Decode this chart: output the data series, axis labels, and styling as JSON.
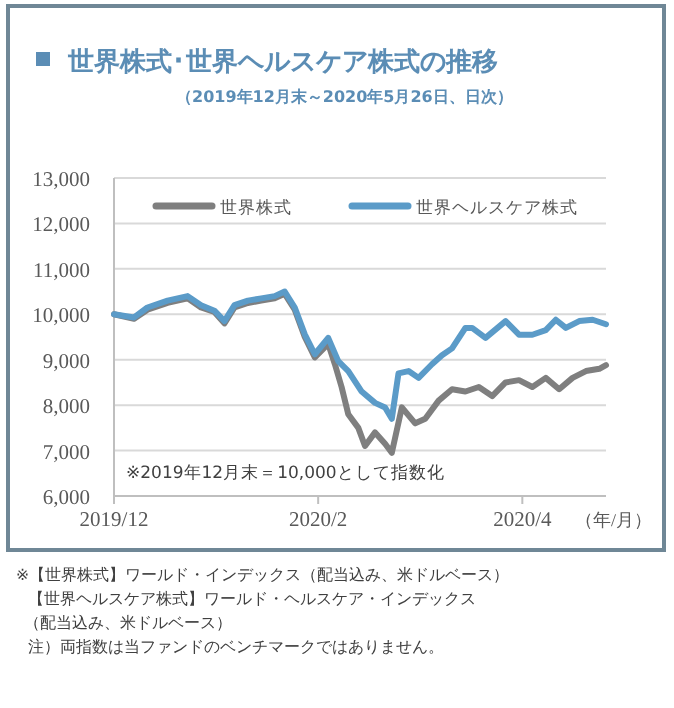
{
  "chart_data": {
    "type": "line",
    "title": "世界株式･世界ヘルスケア株式の推移",
    "subtitle": "（2019年12月末～2020年5月26日、日次）",
    "xlabel": "（年/月）",
    "xlim": [
      "2019-12-31",
      "2020-05-26"
    ],
    "xticks": [
      {
        "value": "2019-12-31",
        "label": "2019/12"
      },
      {
        "value": "2020-03-01",
        "label": "2020/2"
      },
      {
        "value": "2020-05-01",
        "label": "2020/4"
      }
    ],
    "ylim": [
      6000,
      13000
    ],
    "yticks": [
      {
        "value": 6000,
        "label": "6,000"
      },
      {
        "value": 7000,
        "label": "7,000"
      },
      {
        "value": 8000,
        "label": "8,000"
      },
      {
        "value": 9000,
        "label": "9,000"
      },
      {
        "value": 10000,
        "label": "10,000"
      },
      {
        "value": 11000,
        "label": "11,000"
      },
      {
        "value": 12000,
        "label": "12,000"
      },
      {
        "value": 13000,
        "label": "13,000"
      }
    ],
    "grid": "y",
    "legend": "top",
    "line_style": "solid",
    "marker": "none",
    "series": [
      {
        "name": "世界株式",
        "color": "#7f7f7f",
        "x": [
          "2019-12-31",
          "2020-01-06",
          "2020-01-10",
          "2020-01-16",
          "2020-01-22",
          "2020-01-26",
          "2020-01-30",
          "2020-02-02",
          "2020-02-05",
          "2020-02-09",
          "2020-02-13",
          "2020-02-17",
          "2020-02-20",
          "2020-02-23",
          "2020-02-26",
          "2020-02-29",
          "2020-03-04",
          "2020-03-06",
          "2020-03-08",
          "2020-03-10",
          "2020-03-13",
          "2020-03-15",
          "2020-03-18",
          "2020-03-21",
          "2020-03-23",
          "2020-03-26",
          "2020-03-30",
          "2020-04-02",
          "2020-04-06",
          "2020-04-10",
          "2020-04-14",
          "2020-04-18",
          "2020-04-22",
          "2020-04-26",
          "2020-04-30",
          "2020-05-04",
          "2020-05-08",
          "2020-05-12",
          "2020-05-16",
          "2020-05-20",
          "2020-05-24",
          "2020-05-26"
        ],
        "values": [
          10000,
          9900,
          10100,
          10250,
          10350,
          10150,
          10050,
          9800,
          10150,
          10250,
          10300,
          10350,
          10450,
          10100,
          9500,
          9050,
          9350,
          8900,
          8400,
          7800,
          7500,
          7100,
          7400,
          7150,
          6950,
          7950,
          7600,
          7700,
          8100,
          8350,
          8300,
          8400,
          8200,
          8500,
          8550,
          8400,
          8600,
          8350,
          8600,
          8750,
          8800,
          8880
        ]
      },
      {
        "name": "世界ヘルスケア株式",
        "color": "#5b9bc8",
        "x": [
          "2019-12-31",
          "2020-01-06",
          "2020-01-10",
          "2020-01-16",
          "2020-01-22",
          "2020-01-26",
          "2020-01-30",
          "2020-02-02",
          "2020-02-05",
          "2020-02-09",
          "2020-02-13",
          "2020-02-17",
          "2020-02-20",
          "2020-02-23",
          "2020-02-26",
          "2020-02-29",
          "2020-03-04",
          "2020-03-07",
          "2020-03-10",
          "2020-03-14",
          "2020-03-18",
          "2020-03-21",
          "2020-03-23",
          "2020-03-25",
          "2020-03-28",
          "2020-03-31",
          "2020-04-04",
          "2020-04-07",
          "2020-04-10",
          "2020-04-14",
          "2020-04-16",
          "2020-04-20",
          "2020-04-26",
          "2020-04-30",
          "2020-05-04",
          "2020-05-08",
          "2020-05-11",
          "2020-05-14",
          "2020-05-18",
          "2020-05-22",
          "2020-05-26"
        ],
        "values": [
          10000,
          9930,
          10150,
          10300,
          10400,
          10200,
          10080,
          9850,
          10200,
          10300,
          10350,
          10400,
          10500,
          10150,
          9560,
          9120,
          9480,
          8970,
          8750,
          8300,
          8050,
          7950,
          7700,
          8700,
          8750,
          8600,
          8900,
          9100,
          9250,
          9700,
          9700,
          9480,
          9850,
          9550,
          9550,
          9650,
          9880,
          9700,
          9850,
          9880,
          9780
        ]
      }
    ],
    "annotations": [
      "※2019年12月末＝10,000として指数化",
      "※【世界株式】ワールド・インデックス（配当込み、米ドルベース）",
      "【世界ヘルスケア株式】ワールド・ヘルスケア・インデックス",
      "（配当込み、米ドルベース）",
      "注）両指数は当ファンドのベンチマークではありません。"
    ]
  }
}
